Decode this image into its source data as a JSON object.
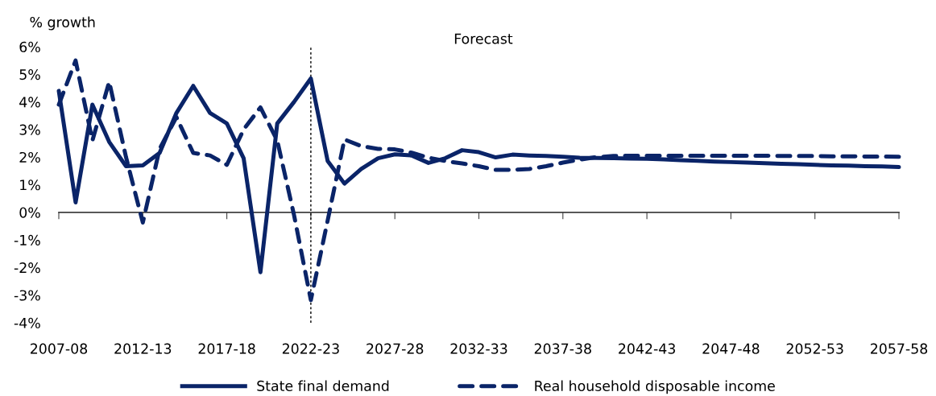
{
  "chart_data": {
    "type": "line",
    "ylabel": "% growth",
    "categories": [
      "2007-08",
      null,
      null,
      null,
      null,
      "2012-13",
      null,
      null,
      null,
      null,
      "2017-18",
      null,
      null,
      null,
      null,
      "2022-23",
      null,
      null,
      null,
      null,
      "2027-28",
      null,
      null,
      null,
      null,
      "2032-33",
      null,
      null,
      null,
      null,
      "2037-38",
      null,
      null,
      null,
      null,
      "2042-43",
      null,
      null,
      null,
      null,
      "2047-48",
      null,
      null,
      null,
      null,
      "2052-53",
      null,
      null,
      null,
      null,
      "2057-58"
    ],
    "series": [
      {
        "name": "State final demand",
        "color": "#0a2468",
        "line_style": "solid",
        "values": [
          4.4,
          0.36,
          3.9,
          2.55,
          1.67,
          1.7,
          2.15,
          3.6,
          4.58,
          3.6,
          3.22,
          1.96,
          -2.17,
          3.22,
          4.0,
          4.85,
          1.86,
          1.04,
          1.57,
          1.96,
          2.1,
          2.06,
          1.79,
          1.96,
          2.25,
          2.18,
          1.99,
          2.09,
          2.06,
          2.04,
          2.01,
          1.98,
          1.97,
          1.96,
          1.95,
          1.94,
          1.92,
          1.89,
          1.87,
          1.84,
          1.82,
          1.8,
          1.78,
          1.76,
          1.74,
          1.72,
          1.7,
          1.69,
          1.67,
          1.66,
          1.64
        ]
      },
      {
        "name": "Real household disposable income",
        "color": "#0a2468",
        "line_style": "dashed",
        "values": [
          3.9,
          5.5,
          2.6,
          4.73,
          2.0,
          -0.37,
          2.3,
          3.45,
          2.15,
          2.06,
          1.72,
          3.0,
          3.8,
          2.6,
          -0.1,
          -3.18,
          -0.3,
          2.64,
          2.4,
          2.3,
          2.28,
          2.16,
          1.98,
          1.86,
          1.77,
          1.67,
          1.54,
          1.54,
          1.57,
          1.67,
          1.8,
          1.91,
          2.0,
          2.04,
          2.05,
          2.05,
          2.05,
          2.05,
          2.05,
          2.05,
          2.05,
          2.05,
          2.05,
          2.04,
          2.04,
          2.04,
          2.03,
          2.03,
          2.02,
          2.02,
          2.01
        ]
      }
    ],
    "ylim": [
      -4,
      6
    ],
    "yticks": [
      {
        "value": -4,
        "label": "-4%"
      },
      {
        "value": -3,
        "label": "-3%"
      },
      {
        "value": -2,
        "label": "-2%"
      },
      {
        "value": -1,
        "label": "-1%"
      },
      {
        "value": 0,
        "label": "0%"
      },
      {
        "value": 1,
        "label": "1%"
      },
      {
        "value": 2,
        "label": "2%"
      },
      {
        "value": 3,
        "label": "3%"
      },
      {
        "value": 4,
        "label": "4%"
      },
      {
        "value": 5,
        "label": "5%"
      },
      {
        "value": 6,
        "label": "6%"
      }
    ],
    "ref_lines": [
      {
        "axis": "x",
        "value": "2022-23",
        "color": "#000000",
        "line_style": "dotted"
      }
    ],
    "annotations": [
      "Forecast"
    ],
    "grid": false,
    "legend": "bottom",
    "marker": "none"
  }
}
